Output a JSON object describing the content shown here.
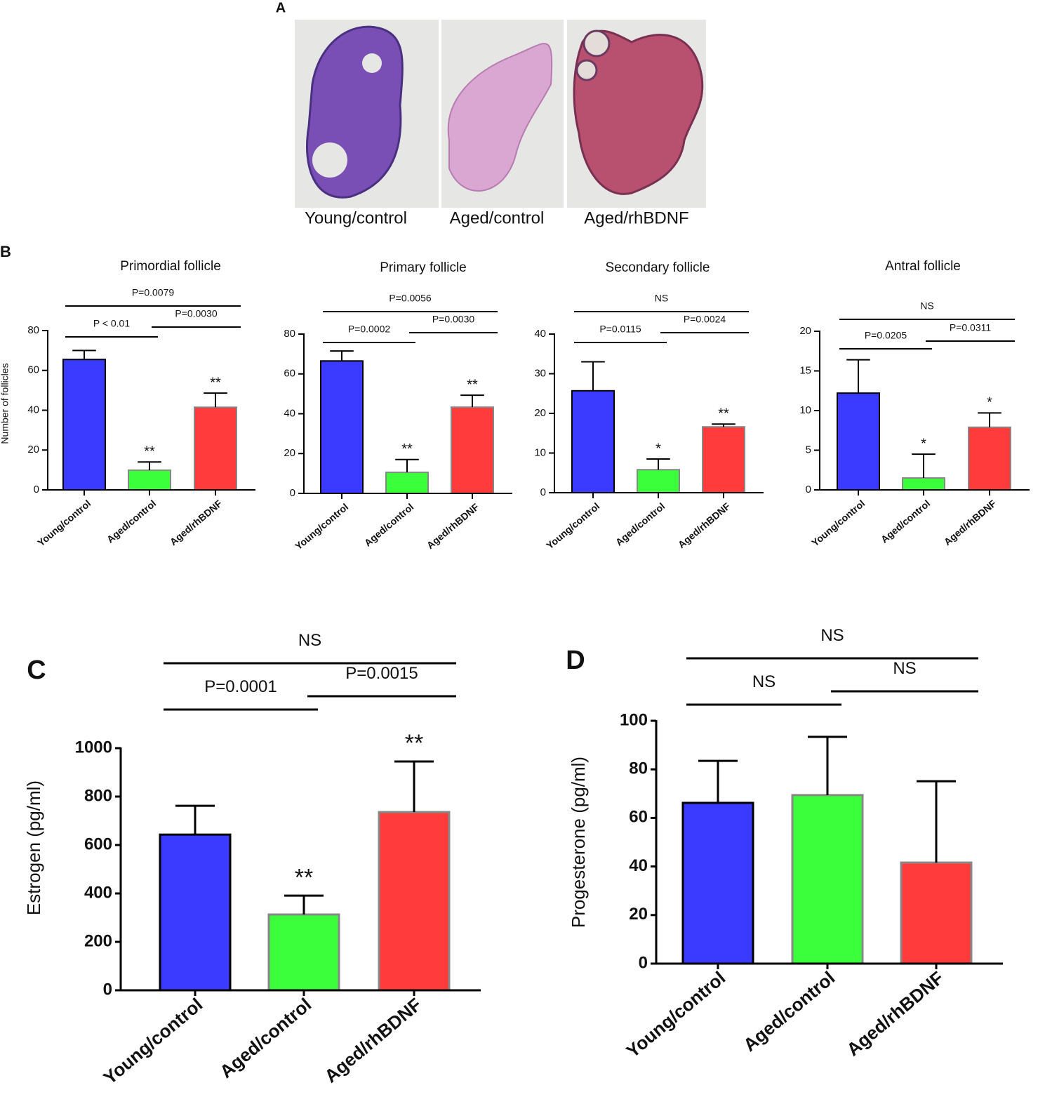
{
  "panel_a": {
    "panel": "A",
    "captions": [
      "Young/control",
      "Aged/control",
      "Aged/rhBDNF"
    ]
  },
  "chart_data": [
    {
      "type": "bar",
      "panel": "B",
      "title": "Primordial follicle",
      "ylabel": "Number of follicles",
      "categories": [
        "Young/control",
        "Aged/control",
        "Aged/rhBDNF"
      ],
      "values": [
        65.5,
        9.9,
        41.5
      ],
      "errors": [
        4.5,
        4.1,
        7.1
      ],
      "colors": [
        "#3b3bff",
        "#3bff3b",
        "#ff3b3b"
      ],
      "edgecolors": [
        "#000000",
        "#888888",
        "#888888"
      ],
      "ylim": [
        0,
        80
      ],
      "yticks": [
        0,
        20,
        40,
        60,
        80
      ],
      "brackets": [
        {
          "label": "P=0.0079",
          "from": 0,
          "to": 2
        },
        {
          "label": "P < 0.01",
          "from": 0,
          "to": 1
        },
        {
          "label": "P=0.0030",
          "from": 1,
          "to": 2
        }
      ],
      "stars": [
        null,
        "**",
        "**"
      ]
    },
    {
      "type": "bar",
      "title": "Primary follicle",
      "categories": [
        "Young/control",
        "Aged/control",
        "Aged/rhBDNF"
      ],
      "values": [
        66.5,
        10.6,
        43.3
      ],
      "errors": [
        5,
        6.4,
        6
      ],
      "colors": [
        "#3b3bff",
        "#3bff3b",
        "#ff3b3b"
      ],
      "edgecolors": [
        "#000000",
        "#888888",
        "#888888"
      ],
      "ylim": [
        0,
        80
      ],
      "yticks": [
        0,
        20,
        40,
        60,
        80
      ],
      "brackets": [
        {
          "label": "P=0.0056",
          "from": 0,
          "to": 2
        },
        {
          "label": "P=0.0002",
          "from": 0,
          "to": 1
        },
        {
          "label": "P=0.0030",
          "from": 1,
          "to": 2
        }
      ],
      "stars": [
        null,
        "**",
        "**"
      ]
    },
    {
      "type": "bar",
      "title": "Secondary follicle",
      "categories": [
        "Young/control",
        "Aged/control",
        "Aged/rhBDNF"
      ],
      "values": [
        25.7,
        5.8,
        16.6
      ],
      "errors": [
        7.3,
        2.7,
        0.7
      ],
      "colors": [
        "#3b3bff",
        "#3bff3b",
        "#ff3b3b"
      ],
      "edgecolors": [
        "#000000",
        "#888888",
        "#888888"
      ],
      "ylim": [
        0,
        40
      ],
      "yticks": [
        0,
        10,
        20,
        30,
        40
      ],
      "brackets": [
        {
          "label": "NS",
          "from": 0,
          "to": 2
        },
        {
          "label": "P=0.0115",
          "from": 0,
          "to": 1
        },
        {
          "label": "P=0.0024",
          "from": 1,
          "to": 2
        }
      ],
      "stars": [
        null,
        "*",
        "**"
      ]
    },
    {
      "type": "bar",
      "title": "Antral follicle",
      "categories": [
        "Young/control",
        "Aged/control",
        "Aged/rhBDNF"
      ],
      "values": [
        12.2,
        1.5,
        7.9
      ],
      "errors": [
        4.2,
        3,
        1.8
      ],
      "colors": [
        "#3b3bff",
        "#3bff3b",
        "#ff3b3b"
      ],
      "edgecolors": [
        "#000000",
        "#888888",
        "#888888"
      ],
      "ylim": [
        0,
        20
      ],
      "yticks": [
        0,
        5,
        10,
        15,
        20
      ],
      "brackets": [
        {
          "label": "NS",
          "from": 0,
          "to": 2
        },
        {
          "label": "P=0.0205",
          "from": 0,
          "to": 1
        },
        {
          "label": "P=0.0311",
          "from": 1,
          "to": 2
        }
      ],
      "stars": [
        null,
        "*",
        "*"
      ]
    },
    {
      "type": "bar",
      "panel": "C",
      "ylabel": "Estrogen (pg/ml)",
      "categories": [
        "Young/control",
        "Aged/control",
        "Aged/rhBDNF"
      ],
      "values": [
        643,
        313,
        736
      ],
      "errors": [
        119,
        78,
        209
      ],
      "colors": [
        "#3b3bff",
        "#3bff3b",
        "#ff3b3b"
      ],
      "edgecolors": [
        "#000000",
        "#888888",
        "#888888"
      ],
      "ylim": [
        0,
        1000
      ],
      "yticks": [
        0,
        200,
        400,
        600,
        800,
        1000
      ],
      "brackets": [
        {
          "label": "NS",
          "from": 0,
          "to": 2
        },
        {
          "label": "P=0.0001",
          "from": 0,
          "to": 1
        },
        {
          "label": "P=0.0015",
          "from": 1,
          "to": 2
        }
      ],
      "stars": [
        null,
        "**",
        "**"
      ]
    },
    {
      "type": "bar",
      "panel": "D",
      "ylabel": "Progesterone (pg/ml)",
      "categories": [
        "Young/control",
        "Aged/control",
        "Aged/rhBDNF"
      ],
      "values": [
        66.2,
        69.4,
        41.6
      ],
      "errors": [
        17.3,
        24,
        33.5
      ],
      "colors": [
        "#3b3bff",
        "#3bff3b",
        "#ff3b3b"
      ],
      "edgecolors": [
        "#000000",
        "#888888",
        "#888888"
      ],
      "ylim": [
        0,
        100
      ],
      "yticks": [
        0,
        20,
        40,
        60,
        80,
        100
      ],
      "brackets": [
        {
          "label": "NS",
          "from": 0,
          "to": 2
        },
        {
          "label": "NS",
          "from": 0,
          "to": 1
        },
        {
          "label": "NS",
          "from": 1,
          "to": 2
        }
      ],
      "stars": [
        null,
        null,
        null
      ]
    }
  ]
}
